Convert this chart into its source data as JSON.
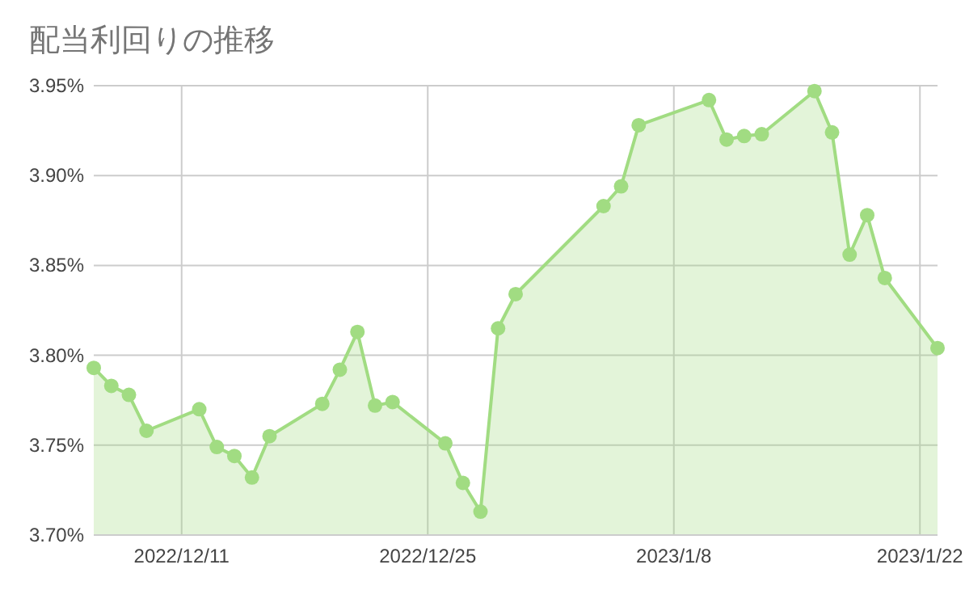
{
  "chart_data": {
    "type": "area",
    "title": "配当利回りの推移",
    "x": [
      "2022-12-06",
      "2022-12-07",
      "2022-12-08",
      "2022-12-09",
      "2022-12-12",
      "2022-12-13",
      "2022-12-14",
      "2022-12-15",
      "2022-12-16",
      "2022-12-19",
      "2022-12-20",
      "2022-12-21",
      "2022-12-22",
      "2022-12-23",
      "2022-12-26",
      "2022-12-27",
      "2022-12-28",
      "2022-12-29",
      "2022-12-30",
      "2023-01-04",
      "2023-01-05",
      "2023-01-06",
      "2023-01-10",
      "2023-01-11",
      "2023-01-12",
      "2023-01-13",
      "2023-01-16",
      "2023-01-17",
      "2023-01-18",
      "2023-01-19",
      "2023-01-20",
      "2023-01-23"
    ],
    "series": [
      {
        "color": "#a1dc82",
        "values": [
          3.793,
          3.783,
          3.778,
          3.758,
          3.77,
          3.749,
          3.744,
          3.732,
          3.755,
          3.773,
          3.792,
          3.813,
          3.772,
          3.774,
          3.751,
          3.729,
          3.713,
          3.815,
          3.834,
          3.883,
          3.894,
          3.928,
          3.942,
          3.92,
          3.922,
          3.923,
          3.947,
          3.924,
          3.856,
          3.878,
          3.843,
          3.804
        ]
      }
    ],
    "xlim": [
      "2022-12-06",
      "2023-01-23"
    ],
    "xticks": [
      {
        "value": "2022-12-11",
        "label": "2022/12/11"
      },
      {
        "value": "2022-12-25",
        "label": "2022/12/25"
      },
      {
        "value": "2023-01-08",
        "label": "2023/1/8"
      },
      {
        "value": "2023-01-22",
        "label": "2023/1/22"
      }
    ],
    "ylim": [
      3.7,
      3.95
    ],
    "yticks": [
      {
        "value": 3.7,
        "label": "3.70%"
      },
      {
        "value": 3.75,
        "label": "3.75%"
      },
      {
        "value": 3.8,
        "label": "3.80%"
      },
      {
        "value": 3.85,
        "label": "3.85%"
      },
      {
        "value": 3.9,
        "label": "3.90%"
      },
      {
        "value": 3.95,
        "label": "3.95%"
      }
    ],
    "grid": true,
    "marker": "circle"
  }
}
